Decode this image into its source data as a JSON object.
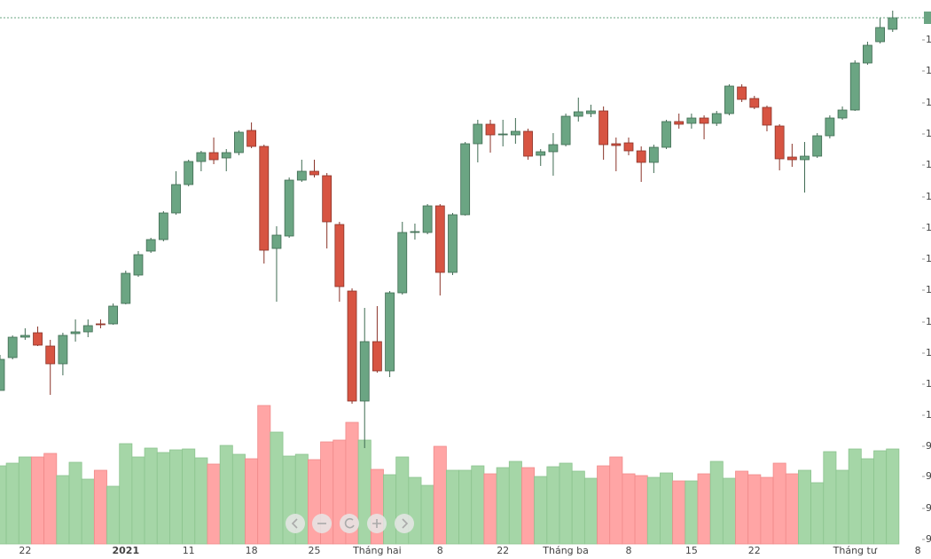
{
  "chart_data": {
    "type": "candlestick",
    "categories": [
      null,
      null,
      "22",
      null,
      null,
      null,
      null,
      null,
      null,
      null,
      "2021",
      null,
      null,
      null,
      null,
      "11",
      null,
      null,
      null,
      null,
      "18",
      null,
      null,
      null,
      null,
      "25",
      null,
      null,
      null,
      null,
      "Tháng hai",
      null,
      null,
      null,
      null,
      "8",
      null,
      null,
      null,
      null,
      "22",
      null,
      null,
      null,
      null,
      "Tháng ba",
      null,
      null,
      null,
      null,
      "8",
      null,
      null,
      null,
      null,
      "15",
      null,
      null,
      null,
      null,
      "22",
      null,
      null,
      null,
      null,
      null,
      null,
      null,
      "Tháng tư",
      null,
      null,
      null,
      null,
      "8"
    ],
    "open": [
      60,
      97,
      120,
      125,
      110,
      90,
      124,
      126,
      135,
      135,
      158,
      190,
      217,
      230,
      260,
      292,
      318,
      328,
      322,
      328,
      353,
      335,
      220,
      234,
      297,
      307,
      302,
      247,
      172,
      48,
      115,
      82,
      170,
      238,
      238,
      268,
      193,
      258,
      338,
      360,
      348,
      348,
      352,
      325,
      329,
      337,
      369,
      372,
      375,
      338,
      339,
      330,
      317,
      334,
      363,
      361,
      367,
      361,
      372,
      402,
      389,
      379,
      358,
      323,
      320,
      324,
      347,
      367,
      376,
      429,
      453,
      467,
      null,
      null
    ],
    "high": [
      100,
      122,
      130,
      132,
      117,
      125,
      140,
      140,
      140,
      158,
      195,
      217,
      232,
      262,
      307,
      320,
      330,
      345,
      332,
      353,
      362,
      337,
      245,
      300,
      320,
      320,
      305,
      250,
      175,
      153,
      155,
      172,
      250,
      248,
      270,
      270,
      260,
      340,
      365,
      365,
      365,
      367,
      355,
      332,
      350,
      372,
      390,
      382,
      380,
      345,
      345,
      335,
      337,
      365,
      372,
      372,
      370,
      375,
      405,
      405,
      392,
      381,
      360,
      338,
      340,
      350,
      370,
      380,
      432,
      453,
      480,
      488,
      null,
      null
    ],
    "low": [
      60,
      95,
      117,
      110,
      55,
      77,
      115,
      120,
      130,
      134,
      157,
      188,
      215,
      228,
      258,
      290,
      307,
      315,
      307,
      325,
      333,
      203,
      160,
      232,
      295,
      300,
      220,
      160,
      45,
      -5,
      80,
      75,
      168,
      230,
      236,
      167,
      190,
      257,
      317,
      328,
      335,
      338,
      320,
      313,
      302,
      335,
      363,
      368,
      320,
      307,
      325,
      295,
      305,
      332,
      355,
      355,
      343,
      358,
      370,
      385,
      377,
      352,
      308,
      312,
      283,
      322,
      344,
      365,
      375,
      427,
      451,
      464,
      null,
      null
    ],
    "close": [
      95,
      120,
      122,
      111,
      90,
      122,
      126,
      133,
      134,
      155,
      192,
      213,
      230,
      260,
      292,
      318,
      328,
      320,
      328,
      351,
      335,
      218,
      235,
      297,
      307,
      303,
      250,
      177,
      48,
      115,
      82,
      170,
      238,
      239,
      268,
      193,
      258,
      338,
      360,
      348,
      349,
      352,
      324,
      329,
      337,
      369,
      374,
      375,
      337,
      336,
      330,
      317,
      334,
      363,
      360,
      367,
      361,
      372,
      403,
      388,
      379,
      359,
      321,
      320,
      324,
      347,
      367,
      376,
      429,
      449,
      469,
      480,
      null,
      null
    ],
    "volume": [
      88,
      91,
      98,
      98,
      102,
      77,
      92,
      73,
      83,
      65,
      113,
      98,
      108,
      103,
      106,
      107,
      97,
      90,
      111,
      101,
      96,
      156,
      126,
      99,
      101,
      95,
      115,
      117,
      137,
      117,
      84,
      78,
      98,
      75,
      66,
      110,
      83,
      83,
      88,
      79,
      86,
      93,
      86,
      76,
      87,
      91,
      82,
      74,
      88,
      98,
      79,
      77,
      75,
      80,
      71,
      71,
      79,
      93,
      74,
      82,
      78,
      75,
      91,
      79,
      83,
      69,
      104,
      83,
      107,
      96,
      105,
      107,
      null,
      null
    ],
    "up_color": "#6ba583",
    "down_color": "#d75442",
    "volume_up_color": "#a5d6a7",
    "volume_down_color": "#ffa5a5",
    "ylim": [
      -130,
      500
    ],
    "yticks": [
      {
        "value": 455,
        "label": "1"
      },
      {
        "value": 420,
        "label": "1"
      },
      {
        "value": 384,
        "label": "1"
      },
      {
        "value": 349,
        "label": "1"
      },
      {
        "value": 314,
        "label": "1"
      },
      {
        "value": 278,
        "label": "1"
      },
      {
        "value": 243,
        "label": "1"
      },
      {
        "value": 208,
        "label": "1"
      },
      {
        "value": 173,
        "label": "1"
      },
      {
        "value": 137,
        "label": "1"
      },
      {
        "value": 102,
        "label": "1"
      },
      {
        "value": 67,
        "label": "1"
      },
      {
        "value": 32,
        "label": "1"
      }
    ],
    "volume_lim": [
      -17,
      613
    ],
    "volume_ticks": [
      {
        "value": 110,
        "label": "9"
      },
      {
        "value": 76,
        "label": "9"
      },
      {
        "value": 40,
        "label": "9"
      },
      {
        "value": 5,
        "label": "9"
      }
    ]
  }
}
